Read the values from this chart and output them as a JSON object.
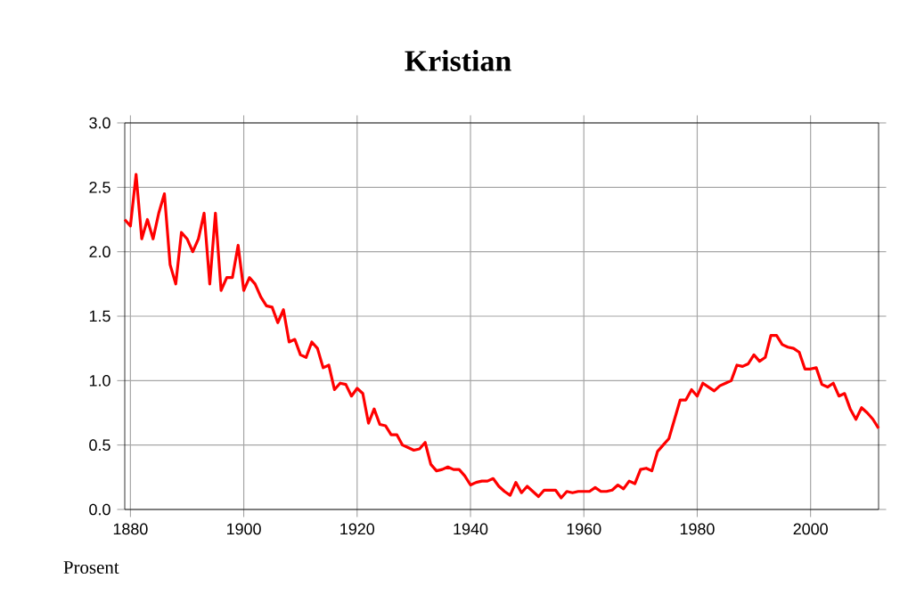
{
  "chart_data": {
    "type": "line",
    "title": "Kristian",
    "ylabel": "Prosent",
    "x": [
      1879,
      1880,
      1881,
      1882,
      1883,
      1884,
      1885,
      1886,
      1887,
      1888,
      1889,
      1890,
      1891,
      1892,
      1893,
      1894,
      1895,
      1896,
      1897,
      1898,
      1899,
      1900,
      1901,
      1902,
      1903,
      1904,
      1905,
      1906,
      1907,
      1908,
      1909,
      1910,
      1911,
      1912,
      1913,
      1914,
      1915,
      1916,
      1917,
      1918,
      1919,
      1920,
      1921,
      1922,
      1923,
      1924,
      1925,
      1926,
      1927,
      1928,
      1929,
      1930,
      1931,
      1932,
      1933,
      1934,
      1935,
      1936,
      1937,
      1938,
      1939,
      1940,
      1941,
      1942,
      1943,
      1944,
      1945,
      1946,
      1947,
      1948,
      1949,
      1950,
      1951,
      1952,
      1953,
      1954,
      1955,
      1956,
      1957,
      1958,
      1959,
      1960,
      1961,
      1962,
      1963,
      1964,
      1965,
      1966,
      1967,
      1968,
      1969,
      1970,
      1971,
      1972,
      1973,
      1974,
      1975,
      1976,
      1977,
      1978,
      1979,
      1980,
      1981,
      1982,
      1983,
      1984,
      1985,
      1986,
      1987,
      1988,
      1989,
      1990,
      1991,
      1992,
      1993,
      1994,
      1995,
      1996,
      1997,
      1998,
      1999,
      2000,
      2001,
      2002,
      2003,
      2004,
      2005,
      2006,
      2007,
      2008,
      2009,
      2010,
      2011,
      2012
    ],
    "series": [
      {
        "color": "#ff0000",
        "values": [
          2.25,
          2.2,
          2.6,
          2.1,
          2.25,
          2.1,
          2.3,
          2.45,
          1.9,
          1.75,
          2.15,
          2.1,
          2.0,
          2.1,
          2.3,
          1.75,
          2.3,
          1.7,
          1.8,
          1.8,
          2.05,
          1.7,
          1.8,
          1.75,
          1.65,
          1.58,
          1.57,
          1.45,
          1.55,
          1.3,
          1.32,
          1.2,
          1.18,
          1.3,
          1.25,
          1.1,
          1.12,
          0.93,
          0.98,
          0.97,
          0.88,
          0.94,
          0.9,
          0.67,
          0.78,
          0.66,
          0.65,
          0.58,
          0.58,
          0.5,
          0.48,
          0.46,
          0.47,
          0.52,
          0.35,
          0.3,
          0.31,
          0.33,
          0.31,
          0.31,
          0.26,
          0.19,
          0.21,
          0.22,
          0.22,
          0.24,
          0.18,
          0.14,
          0.11,
          0.21,
          0.13,
          0.18,
          0.14,
          0.1,
          0.15,
          0.15,
          0.15,
          0.09,
          0.14,
          0.13,
          0.14,
          0.14,
          0.14,
          0.17,
          0.14,
          0.14,
          0.15,
          0.19,
          0.16,
          0.22,
          0.2,
          0.31,
          0.32,
          0.3,
          0.45,
          0.5,
          0.55,
          0.7,
          0.85,
          0.85,
          0.93,
          0.88,
          0.98,
          0.95,
          0.92,
          0.96,
          0.98,
          1.0,
          1.12,
          1.11,
          1.13,
          1.2,
          1.15,
          1.18,
          1.35,
          1.35,
          1.28,
          1.26,
          1.25,
          1.22,
          1.09,
          1.09,
          1.1,
          0.97,
          0.95,
          0.98,
          0.88,
          0.9,
          0.78,
          0.7,
          0.79,
          0.75,
          0.7,
          0.63
        ]
      }
    ],
    "xlim": [
      1879,
      2012
    ],
    "ylim": [
      0,
      3
    ],
    "xticks": [
      1880,
      1900,
      1920,
      1940,
      1960,
      1980,
      2000
    ],
    "yticks": [
      {
        "value": 0,
        "label": "0.0"
      },
      {
        "value": 0.5,
        "label": "0.5"
      },
      {
        "value": 1,
        "label": "1.0"
      },
      {
        "value": 1.5,
        "label": "1.5"
      },
      {
        "value": 2,
        "label": "2.0"
      },
      {
        "value": 2.5,
        "label": "2.5"
      },
      {
        "value": 3,
        "label": "3.0"
      }
    ],
    "grid": true,
    "marker": "none",
    "line_style": "solid"
  }
}
